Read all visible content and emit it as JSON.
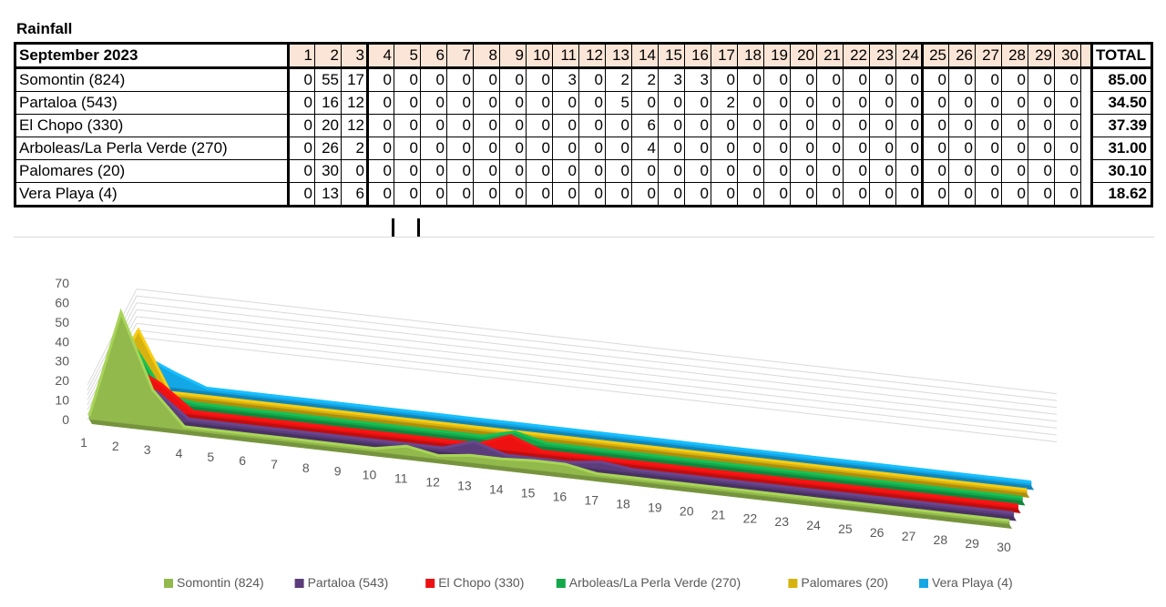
{
  "title": "Rainfall",
  "table": {
    "month_label": "September 2023",
    "days": [
      "1",
      "2",
      "3",
      "4",
      "5",
      "6",
      "7",
      "8",
      "9",
      "10",
      "11",
      "12",
      "13",
      "14",
      "15",
      "16",
      "17",
      "18",
      "19",
      "20",
      "21",
      "22",
      "23",
      "24",
      "25",
      "26",
      "27",
      "28",
      "29",
      "30"
    ],
    "total_label": "TOTAL",
    "rows": [
      {
        "name": "Somontin (824)",
        "values": [
          "0",
          "55",
          "17",
          "0",
          "0",
          "0",
          "0",
          "0",
          "0",
          "0",
          "3",
          "0",
          "2",
          "2",
          "3",
          "3",
          "0",
          "0",
          "0",
          "0",
          "0",
          "0",
          "0",
          "0",
          "0",
          "0",
          "0",
          "0",
          "0",
          "0"
        ],
        "total": "85.00"
      },
      {
        "name": "Partaloa (543)",
        "values": [
          "0",
          "16",
          "12",
          "0",
          "0",
          "0",
          "0",
          "0",
          "0",
          "0",
          "0",
          "0",
          "5",
          "0",
          "0",
          "0",
          "2",
          "0",
          "0",
          "0",
          "0",
          "0",
          "0",
          "0",
          "0",
          "0",
          "0",
          "0",
          "0",
          "0"
        ],
        "total": "34.50"
      },
      {
        "name": "El Chopo (330)",
        "values": [
          "0",
          "20",
          "12",
          "0",
          "0",
          "0",
          "0",
          "0",
          "0",
          "0",
          "0",
          "0",
          "0",
          "6",
          "0",
          "0",
          "0",
          "0",
          "0",
          "0",
          "0",
          "0",
          "0",
          "0",
          "0",
          "0",
          "0",
          "0",
          "0",
          "0"
        ],
        "total": "37.39"
      },
      {
        "name": "Arboleas/La Perla Verde (270)",
        "values": [
          "0",
          "26",
          "2",
          "0",
          "0",
          "0",
          "0",
          "0",
          "0",
          "0",
          "0",
          "0",
          "0",
          "4",
          "0",
          "0",
          "0",
          "0",
          "0",
          "0",
          "0",
          "0",
          "0",
          "0",
          "0",
          "0",
          "0",
          "0",
          "0",
          "0"
        ],
        "total": "31.00"
      },
      {
        "name": "Palomares (20)",
        "values": [
          "0",
          "30",
          "0",
          "0",
          "0",
          "0",
          "0",
          "0",
          "0",
          "0",
          "0",
          "0",
          "0",
          "0",
          "0",
          "0",
          "0",
          "0",
          "0",
          "0",
          "0",
          "0",
          "0",
          "0",
          "0",
          "0",
          "0",
          "0",
          "0",
          "0"
        ],
        "total": "30.10"
      },
      {
        "name": "Vera Playa (4)",
        "values": [
          "0",
          "13",
          "6",
          "0",
          "0",
          "0",
          "0",
          "0",
          "0",
          "0",
          "0",
          "0",
          "0",
          "0",
          "0",
          "0",
          "0",
          "0",
          "0",
          "0",
          "0",
          "0",
          "0",
          "0",
          "0",
          "0",
          "0",
          "0",
          "0",
          "0"
        ],
        "total": "18.62"
      }
    ]
  },
  "chart_data": {
    "type": "area",
    "variant": "3d-area",
    "categories": [
      "1",
      "2",
      "3",
      "4",
      "5",
      "6",
      "7",
      "8",
      "9",
      "10",
      "11",
      "12",
      "13",
      "14",
      "15",
      "16",
      "17",
      "18",
      "19",
      "20",
      "21",
      "22",
      "23",
      "24",
      "25",
      "26",
      "27",
      "28",
      "29",
      "30"
    ],
    "yticks": [
      "0",
      "10",
      "20",
      "30",
      "40",
      "50",
      "60",
      "70"
    ],
    "ylim": [
      0,
      70
    ],
    "grid": true,
    "legend_position": "bottom",
    "series": [
      {
        "name": "Somontin (824)",
        "color": "#92b94c",
        "values": [
          0,
          55,
          17,
          0,
          0,
          0,
          0,
          0,
          0,
          0,
          3,
          0,
          2,
          2,
          3,
          3,
          0,
          0,
          0,
          0,
          0,
          0,
          0,
          0,
          0,
          0,
          0,
          0,
          0,
          0
        ]
      },
      {
        "name": "Partaloa (543)",
        "color": "#5b3d7c",
        "values": [
          0,
          16,
          12,
          0,
          0,
          0,
          0,
          0,
          0,
          0,
          0,
          0,
          5,
          0,
          0,
          0,
          2,
          0,
          0,
          0,
          0,
          0,
          0,
          0,
          0,
          0,
          0,
          0,
          0,
          0
        ]
      },
      {
        "name": "El Chopo (330)",
        "color": "#ee1111",
        "values": [
          0,
          20,
          12,
          0,
          0,
          0,
          0,
          0,
          0,
          0,
          0,
          0,
          0,
          6,
          0,
          0,
          0,
          0,
          0,
          0,
          0,
          0,
          0,
          0,
          0,
          0,
          0,
          0,
          0,
          0
        ]
      },
      {
        "name": "Arboleas/La Perla Verde (270)",
        "color": "#14a84a",
        "values": [
          0,
          26,
          2,
          0,
          0,
          0,
          0,
          0,
          0,
          0,
          0,
          0,
          0,
          4,
          0,
          0,
          0,
          0,
          0,
          0,
          0,
          0,
          0,
          0,
          0,
          0,
          0,
          0,
          0,
          0
        ]
      },
      {
        "name": "Palomares (20)",
        "color": "#d8b20f",
        "values": [
          0,
          30,
          0,
          0,
          0,
          0,
          0,
          0,
          0,
          0,
          0,
          0,
          0,
          0,
          0,
          0,
          0,
          0,
          0,
          0,
          0,
          0,
          0,
          0,
          0,
          0,
          0,
          0,
          0,
          0
        ]
      },
      {
        "name": "Vera Playa (4)",
        "color": "#14a7e6",
        "values": [
          0,
          13,
          6,
          0,
          0,
          0,
          0,
          0,
          0,
          0,
          0,
          0,
          0,
          0,
          0,
          0,
          0,
          0,
          0,
          0,
          0,
          0,
          0,
          0,
          0,
          0,
          0,
          0,
          0,
          0
        ]
      }
    ]
  }
}
